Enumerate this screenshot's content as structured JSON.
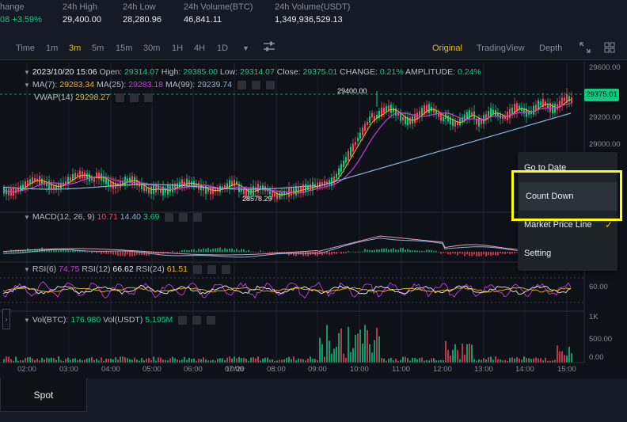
{
  "stats": {
    "change_label": "hange",
    "change_value": "08 +3.59%",
    "high_label": "24h High",
    "high_value": "29,400.00",
    "low_label": "24h Low",
    "low_value": "28,280.96",
    "vol_btc_label": "24h Volume(BTC)",
    "vol_btc_value": "46,841.11",
    "vol_usdt_label": "24h Volume(USDT)",
    "vol_usdt_value": "1,349,936,529.13"
  },
  "toolbar": {
    "timeframes": [
      "Time",
      "1m",
      "3m",
      "5m",
      "15m",
      "30m",
      "1H",
      "4H",
      "1D"
    ],
    "active_timeframe": "3m",
    "dropdown_icon": "caret-down-icon",
    "settings_icon": "sliders-icon",
    "views": [
      "Original",
      "TradingView",
      "Depth"
    ],
    "active_view": "Original",
    "expand_icon": "expand-icon",
    "grid_icon": "grid-icon"
  },
  "ohlc": {
    "time": "2023/10/20 15:06",
    "open_label": "Open:",
    "open": "29314.07",
    "high_label": "High:",
    "high": "29385.00",
    "low_label": "Low:",
    "low": "29314.07",
    "close_label": "Close:",
    "close": "29375.01",
    "change_label": "CHANGE:",
    "change": "0.21%",
    "amplitude_label": "AMPLITUDE:",
    "amplitude": "0.24%"
  },
  "ma": {
    "ma7_label": "MA(7):",
    "ma7": "29283.34",
    "ma25_label": "MA(25):",
    "ma25": "29283.18",
    "ma99_label": "MA(99):",
    "ma99": "29239.74"
  },
  "vwap": {
    "label": "VWAP(14)",
    "value": "29298.27"
  },
  "macd": {
    "label": "MACD(12, 26, 9)",
    "v1": "10.71",
    "v2": "14.40",
    "v3": "3.69"
  },
  "rsi": {
    "rsi6_label": "RSI(6)",
    "rsi6": "74.75",
    "rsi12_label": "RSI(12)",
    "rsi12": "66.62",
    "rsi24_label": "RSI(24)",
    "rsi24": "61.51"
  },
  "vol": {
    "btc_label": "Vol(BTC):",
    "btc": "176.980",
    "usdt_label": "Vol(USDT)",
    "usdt": "5.195M"
  },
  "annotations": {
    "high_marker": "29400.00",
    "low_marker": "28578.29"
  },
  "price_axis": [
    "29600.00",
    "29200.00",
    "29000.00",
    "60.00",
    "1K",
    "500.00",
    "0.00"
  ],
  "current_price_tag": "29375.01",
  "time_axis": [
    "02:00",
    "03:00",
    "04:00",
    "05:00",
    "06:00",
    "07:00",
    "10/20",
    "08:00",
    "09:00",
    "10:00",
    "11:00",
    "12:00",
    "13:00",
    "14:00",
    "15:00"
  ],
  "context_menu": {
    "items": [
      "Go to Date",
      "Count Down",
      "Market Price Line",
      "Setting"
    ],
    "checked_item": "Market Price Line",
    "highlighted_item": "Count Down"
  },
  "bottom": {
    "spot_tab": "Spot"
  },
  "colors": {
    "up": "#0ecb81",
    "down": "#f6465d",
    "accent": "#f0b90b",
    "ma7": "#f0b90b",
    "ma25": "#c33fd9",
    "ma99": "#8ab4d9",
    "highlight_box": "#ffff00"
  }
}
